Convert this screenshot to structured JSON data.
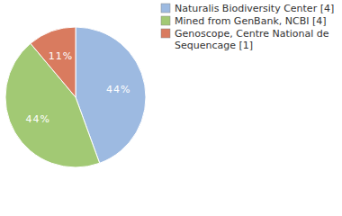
{
  "chart_data": {
    "type": "pie",
    "categories": [
      "Naturalis Biodiversity Center [4]",
      "Mined from GenBank, NCBI [4]",
      "Genoscope, Centre National de Sequencage [1]"
    ],
    "values": [
      44,
      44,
      11
    ],
    "value_labels": [
      "44%",
      "44%",
      "11%"
    ],
    "colors": [
      "#9dbae1",
      "#a2c974",
      "#d97b5f"
    ],
    "data_labels": true,
    "legend": "top-right"
  }
}
